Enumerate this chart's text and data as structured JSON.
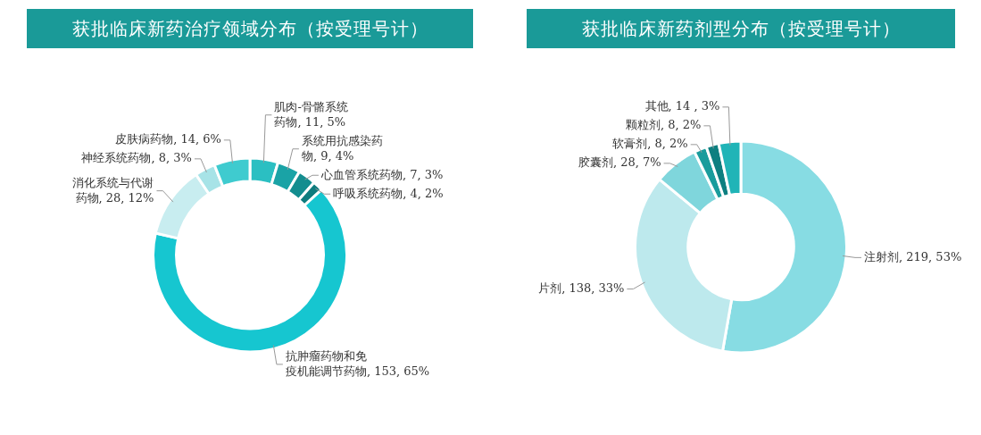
{
  "chart_data": [
    {
      "type": "donut",
      "title": "获批临床新药治疗领域分布（按受理号计）",
      "categories": [
        "肌肉-骨骼系统药物",
        "系统用抗感染药物",
        "心血管系统药物",
        "呼吸系统药物",
        "抗肿瘤药物和免疫机能调节药物",
        "消化系统与代谢药物",
        "神经系统药物",
        "皮肤病药物"
      ],
      "values": [
        11,
        9,
        7,
        4,
        153,
        28,
        8,
        14
      ],
      "value_labels": [
        "11, 5%",
        "9, 4%",
        "7, 3%",
        "4, 2%",
        "153, 65%",
        "28, 12%",
        "8, 3%",
        "14, 6%"
      ],
      "colors": [
        "#2bbfc2",
        "#1aa3a6",
        "#138d8f",
        "#0e7c7e",
        "#16c6d0",
        "#c8edf0",
        "#a7e3e7",
        "#3fcbcf"
      ],
      "legend": false
    },
    {
      "type": "donut",
      "title": "获批临床新药剂型分布（按受理号计）",
      "categories": [
        "注射剂",
        "片剂",
        "胶囊剂",
        "软膏剂",
        "颗粒剂",
        "其他"
      ],
      "values": [
        219,
        138,
        28,
        8,
        8,
        14
      ],
      "value_labels": [
        "219, 53%",
        "138, 33%",
        "28, 7%",
        "8, 2%",
        "8, 2%",
        "14 , 3%"
      ],
      "colors": [
        "#87dce3",
        "#bde9ed",
        "#7fd6dc",
        "#199c9c",
        "#0d7f80",
        "#20b4b7"
      ],
      "legend": false
    }
  ]
}
